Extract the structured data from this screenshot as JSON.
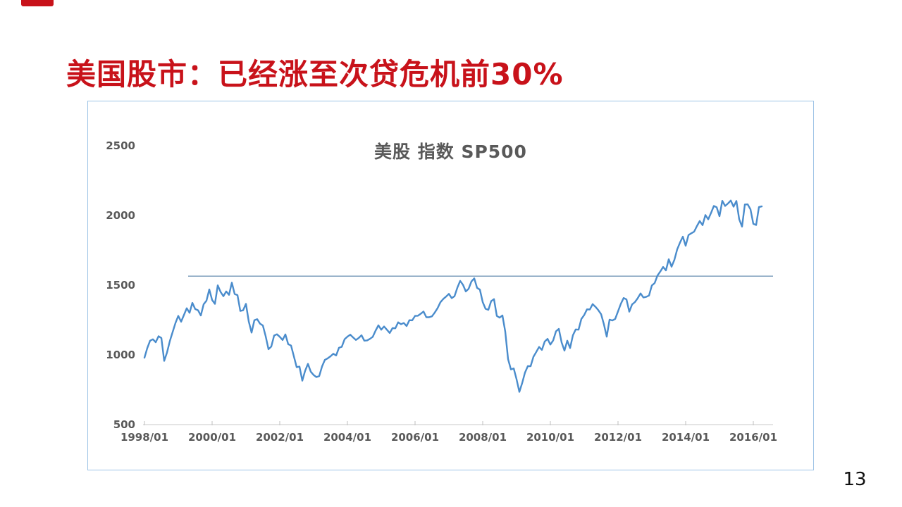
{
  "slide": {
    "title": "美国股市：已经涨至次贷危机前30%",
    "title_color": "#C8121A",
    "accent_mark_color": "#C8121A",
    "page_number": "13",
    "background": "#FFFFFF"
  },
  "chart_data": {
    "type": "line",
    "title": "美股 指数 SP500",
    "title_color": "#595959",
    "axis_label_color": "#595959",
    "border_color": "#9DC3E6",
    "axis_line_color": "#C9C9C9",
    "tick_color": "#BFBFBF",
    "grid": false,
    "legend": false,
    "ylim": [
      500,
      2500
    ],
    "y_ticks": [
      2500,
      2000,
      1500,
      1000,
      500
    ],
    "x_ticks": [
      "1998/01",
      "2000/01",
      "2002/01",
      "2004/01",
      "2006/01",
      "2008/01",
      "2010/01",
      "2012/01",
      "2014/01",
      "2016/01"
    ],
    "reference_line": {
      "value": 1565,
      "color": "#41719C"
    },
    "series": [
      {
        "name": "SP500",
        "color": "#4A8CCC",
        "start": "1998/01",
        "frequency": "monthly",
        "values": [
          980,
          1049,
          1102,
          1112,
          1091,
          1134,
          1121,
          957,
          1017,
          1099,
          1164,
          1229,
          1280,
          1238,
          1286,
          1335,
          1302,
          1373,
          1329,
          1320,
          1283,
          1363,
          1389,
          1469,
          1394,
          1366,
          1499,
          1452,
          1421,
          1455,
          1431,
          1518,
          1437,
          1429,
          1315,
          1320,
          1366,
          1240,
          1160,
          1249,
          1256,
          1224,
          1211,
          1134,
          1041,
          1060,
          1139,
          1148,
          1130,
          1107,
          1147,
          1077,
          1067,
          990,
          912,
          916,
          815,
          886,
          936,
          880,
          856,
          841,
          848,
          917,
          964,
          975,
          990,
          1008,
          996,
          1051,
          1058,
          1112,
          1131,
          1145,
          1126,
          1107,
          1121,
          1141,
          1102,
          1104,
          1115,
          1130,
          1174,
          1212,
          1181,
          1204,
          1181,
          1157,
          1192,
          1191,
          1234,
          1220,
          1229,
          1207,
          1249,
          1248,
          1280,
          1281,
          1295,
          1311,
          1270,
          1270,
          1277,
          1304,
          1336,
          1378,
          1401,
          1418,
          1438,
          1407,
          1421,
          1482,
          1531,
          1503,
          1455,
          1474,
          1527,
          1549,
          1481,
          1468,
          1379,
          1331,
          1323,
          1386,
          1400,
          1280,
          1267,
          1283,
          1166,
          969,
          896,
          903,
          826,
          735,
          798,
          873,
          919,
          919,
          987,
          1021,
          1057,
          1036,
          1096,
          1115,
          1074,
          1104,
          1169,
          1187,
          1089,
          1031,
          1102,
          1049,
          1141,
          1183,
          1181,
          1258,
          1286,
          1327,
          1326,
          1364,
          1345,
          1321,
          1292,
          1219,
          1131,
          1253,
          1247,
          1258,
          1312,
          1366,
          1408,
          1398,
          1310,
          1362,
          1379,
          1407,
          1441,
          1412,
          1416,
          1426,
          1498,
          1515,
          1569,
          1598,
          1631,
          1606,
          1686,
          1633,
          1682,
          1757,
          1806,
          1848,
          1783,
          1859,
          1872,
          1884,
          1924,
          1960,
          1931,
          2003,
          1972,
          2018,
          2068,
          2059,
          1995,
          2105,
          2068,
          2086,
          2107,
          2063,
          2104,
          1972,
          1920,
          2079,
          2080,
          2044,
          1940,
          1932,
          2060,
          2065
        ]
      }
    ]
  }
}
